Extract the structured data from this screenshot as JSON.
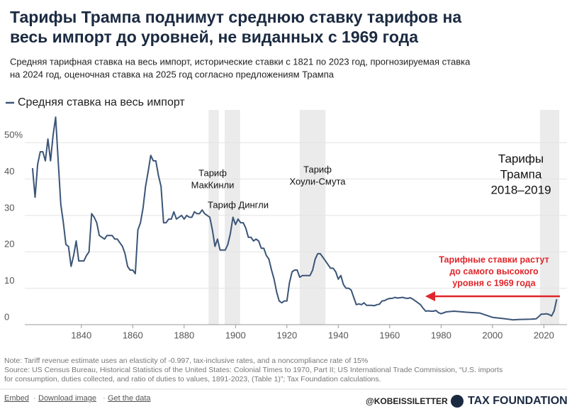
{
  "chart_data": {
    "type": "line",
    "title": [
      "Тарифы Трампа поднимут среднюю ставку тарифов на",
      "весь импорт до уровней, не виданных с 1969 года"
    ],
    "subtitle": [
      "Средняя тарифная ставка на весь импорт, исторические ставки с 1821 по 2023 год, прогнозируемая ставка",
      "на 2024 год, оценочная ставка на 2025 год согласно предложениям Трампа"
    ],
    "x": [
      1821,
      1822,
      1823,
      1824,
      1825,
      1826,
      1827,
      1828,
      1829,
      1830,
      1831,
      1832,
      1833,
      1834,
      1835,
      1836,
      1837,
      1838,
      1839,
      1840,
      1841,
      1842,
      1843,
      1844,
      1845,
      1846,
      1847,
      1848,
      1849,
      1850,
      1851,
      1852,
      1853,
      1854,
      1855,
      1856,
      1857,
      1858,
      1859,
      1860,
      1861,
      1862,
      1863,
      1864,
      1865,
      1866,
      1867,
      1868,
      1869,
      1870,
      1871,
      1872,
      1873,
      1874,
      1875,
      1876,
      1877,
      1878,
      1879,
      1880,
      1881,
      1882,
      1883,
      1884,
      1885,
      1886,
      1887,
      1888,
      1889,
      1890,
      1891,
      1892,
      1893,
      1894,
      1895,
      1896,
      1897,
      1898,
      1899,
      1900,
      1901,
      1902,
      1903,
      1904,
      1905,
      1906,
      1907,
      1908,
      1909,
      1910,
      1911,
      1912,
      1913,
      1914,
      1915,
      1916,
      1917,
      1918,
      1919,
      1920,
      1921,
      1922,
      1923,
      1924,
      1925,
      1926,
      1927,
      1928,
      1929,
      1930,
      1931,
      1932,
      1933,
      1934,
      1935,
      1936,
      1937,
      1938,
      1939,
      1940,
      1941,
      1942,
      1943,
      1944,
      1945,
      1946,
      1947,
      1948,
      1949,
      1950,
      1951,
      1952,
      1953,
      1954,
      1955,
      1956,
      1957,
      1958,
      1959,
      1960,
      1961,
      1962,
      1963,
      1964,
      1965,
      1966,
      1967,
      1968,
      1969,
      1970,
      1971,
      1972,
      1973,
      1974,
      1975,
      1976,
      1977,
      1978,
      1979,
      1980,
      1982,
      1985,
      1990,
      1995,
      2000,
      2005,
      2008,
      2010,
      2015,
      2017,
      2018,
      2019,
      2020,
      2021,
      2022,
      2023,
      2024,
      2025
    ],
    "series": [
      {
        "name": "Средняя ставка на весь импорт",
        "color": "#3b5578",
        "values": [
          43,
          35,
          44,
          47.5,
          47.5,
          45,
          51,
          45,
          52,
          57,
          45,
          33,
          28,
          22,
          21.5,
          16,
          19,
          23,
          17.5,
          17.5,
          17.5,
          19,
          20,
          30.5,
          29.5,
          28,
          24.5,
          24,
          23.5,
          24.5,
          24.5,
          24.5,
          23.5,
          23.5,
          22.5,
          21.5,
          19.5,
          16,
          15,
          15,
          14,
          26,
          28,
          32,
          38,
          42,
          46.5,
          45,
          45,
          41,
          38,
          28,
          28,
          29,
          29,
          31,
          29,
          29.5,
          30,
          29,
          30,
          29.5,
          29.5,
          31,
          30.5,
          30.5,
          31.5,
          30.5,
          30,
          29.5,
          26,
          21.5,
          23.5,
          20.5,
          20.5,
          20.5,
          22,
          25,
          29.5,
          27.5,
          29,
          28,
          28,
          26.5,
          24,
          24,
          23,
          23.5,
          23,
          21,
          21,
          19,
          18,
          15,
          12.5,
          9,
          6.5,
          6,
          6.5,
          6.5,
          11.5,
          14.5,
          15,
          15,
          13,
          13.5,
          13.5,
          13.5,
          13.5,
          15,
          18,
          19.5,
          19.5,
          18.5,
          17.5,
          16.5,
          15.5,
          15.5,
          14.5,
          12.5,
          13.5,
          11,
          10,
          10,
          9.5,
          7.5,
          5.5,
          5.7,
          5.5,
          6,
          5.3,
          5.3,
          5.3,
          5.2,
          5.5,
          5.6,
          6.5,
          6.6,
          7,
          7.2,
          7.2,
          7.5,
          7.3,
          7.4,
          7.5,
          7.3,
          7.2,
          7.4,
          7,
          6.5,
          6,
          5.5,
          4.5,
          3.7,
          3.8,
          3.7,
          3.7,
          3.9,
          3.3,
          3,
          3.5,
          3.7,
          3.4,
          3.2,
          2,
          1.6,
          1.3,
          1.4,
          1.5,
          1.6,
          2.2,
          2.9,
          2.9,
          3,
          2.8,
          2.4,
          3.8,
          7
        ]
      }
    ],
    "xlim": [
      1818,
      2029
    ],
    "ylim": [
      0,
      59
    ],
    "xticks": [
      1840,
      1860,
      1880,
      1900,
      1920,
      1940,
      1960,
      1980,
      2000,
      2020
    ],
    "yticks": [
      0,
      10,
      20,
      30,
      40,
      {
        "value": 50,
        "label": "50%"
      }
    ],
    "shaded_periods": [
      [
        1889.5,
        1893.5
      ],
      [
        1895.8,
        1901.8
      ],
      [
        1925,
        1935
      ],
      [
        2018.5,
        2026
      ]
    ],
    "annotations": [
      {
        "lines": [
          "Тариф",
          "МакКинли"
        ]
      },
      {
        "lines": [
          "Тариф Дингли"
        ]
      },
      {
        "lines": [
          "Тариф",
          "Хоули-Смута"
        ]
      },
      {
        "lines": [
          "Тарифы",
          "Трампа",
          "2018–2019"
        ]
      },
      {
        "lines": [
          "Тарифные ставки растут",
          "до самого высокого",
          "уровня с 1969 года"
        ],
        "color": "#e0262b"
      }
    ],
    "notes": [
      "Note: Tariff revenue estimate uses an elasticity of -0.997, tax-inclusive rates, and a noncompliance rate of 15%",
      "Source: US Census Bureau, Historical Statistics of the United States: Colonial Times to 1970, Part II; US International Trade Commission, “U.S. imports",
      "for consumption, duties collected, and ratio of duties to values, 1891-2023, (Table 1)”; Tax Foundation calculations."
    ],
    "links": [
      "Embed",
      "Download image",
      "Get the data"
    ],
    "handle": "@KOBEISSILETTER",
    "brand": "TAX FOUNDATION"
  }
}
